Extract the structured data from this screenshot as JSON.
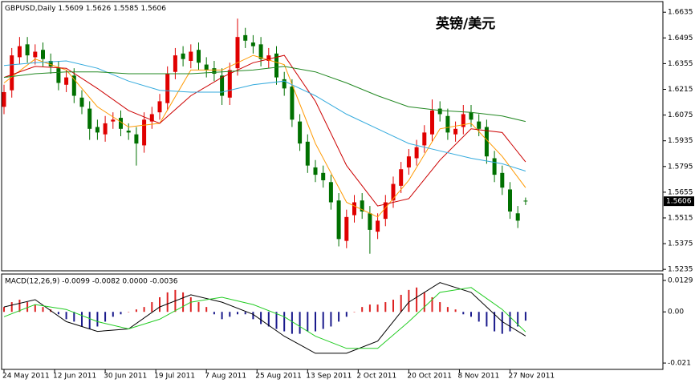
{
  "chart_data": [
    {
      "type": "candlestick",
      "title": "GBPUSD,Daily",
      "annotation": "英镑/美元",
      "open": [
        1.612,
        1.621,
        1.639,
        1.646,
        1.639,
        1.643,
        1.637,
        1.633,
        1.624,
        1.629,
        1.617,
        1.611,
        1.601,
        1.597,
        1.604,
        1.606,
        1.599,
        1.597,
        1.591,
        1.604,
        1.609,
        1.614,
        1.631,
        1.641,
        1.637,
        1.643,
        1.635,
        1.633,
        1.629,
        1.617,
        1.633,
        1.651,
        1.647,
        1.646,
        1.637,
        1.641,
        1.627,
        1.623,
        1.604,
        1.593,
        1.579,
        1.576,
        1.571,
        1.561,
        1.539,
        1.553,
        1.561,
        1.554,
        1.544,
        1.551,
        1.561,
        1.569,
        1.579,
        1.584,
        1.591,
        1.597,
        1.611,
        1.607,
        1.597,
        1.601,
        1.609,
        1.604,
        1.601,
        1.584,
        1.576,
        1.567,
        1.554,
        1.5609
      ],
      "high": [
        1.624,
        1.644,
        1.65,
        1.65,
        1.646,
        1.647,
        1.641,
        1.637,
        1.632,
        1.633,
        1.621,
        1.615,
        1.605,
        1.607,
        1.609,
        1.61,
        1.603,
        1.601,
        1.609,
        1.612,
        1.619,
        1.634,
        1.644,
        1.645,
        1.646,
        1.647,
        1.639,
        1.637,
        1.633,
        1.636,
        1.66,
        1.655,
        1.651,
        1.65,
        1.644,
        1.645,
        1.631,
        1.627,
        1.608,
        1.597,
        1.583,
        1.58,
        1.575,
        1.565,
        1.556,
        1.564,
        1.565,
        1.558,
        1.554,
        1.564,
        1.574,
        1.582,
        1.589,
        1.594,
        1.602,
        1.616,
        1.615,
        1.611,
        1.604,
        1.613,
        1.613,
        1.608,
        1.605,
        1.588,
        1.58,
        1.571,
        1.558,
        1.5626
      ],
      "low": [
        1.608,
        1.617,
        1.635,
        1.636,
        1.635,
        1.634,
        1.63,
        1.621,
        1.62,
        1.614,
        1.608,
        1.594,
        1.594,
        1.593,
        1.6,
        1.596,
        1.594,
        1.58,
        1.587,
        1.6,
        1.605,
        1.61,
        1.627,
        1.634,
        1.633,
        1.632,
        1.628,
        1.626,
        1.613,
        1.613,
        1.629,
        1.644,
        1.641,
        1.634,
        1.633,
        1.624,
        1.618,
        1.601,
        1.588,
        1.576,
        1.571,
        1.568,
        1.556,
        1.536,
        1.535,
        1.549,
        1.551,
        1.532,
        1.54,
        1.547,
        1.557,
        1.565,
        1.575,
        1.58,
        1.587,
        1.593,
        1.604,
        1.594,
        1.593,
        1.597,
        1.601,
        1.596,
        1.581,
        1.571,
        1.564,
        1.551,
        1.546,
        1.5585
      ],
      "close": [
        1.62,
        1.64,
        1.645,
        1.64,
        1.642,
        1.638,
        1.634,
        1.625,
        1.628,
        1.618,
        1.612,
        1.6,
        1.598,
        1.603,
        1.605,
        1.6,
        1.598,
        1.592,
        1.605,
        1.608,
        1.615,
        1.63,
        1.64,
        1.638,
        1.642,
        1.636,
        1.632,
        1.63,
        1.618,
        1.632,
        1.65,
        1.648,
        1.645,
        1.638,
        1.64,
        1.628,
        1.622,
        1.605,
        1.592,
        1.58,
        1.575,
        1.572,
        1.56,
        1.54,
        1.552,
        1.56,
        1.555,
        1.545,
        1.55,
        1.56,
        1.57,
        1.578,
        1.585,
        1.59,
        1.598,
        1.61,
        1.608,
        1.598,
        1.6,
        1.608,
        1.605,
        1.6,
        1.585,
        1.575,
        1.568,
        1.555,
        1.55,
        1.5606
      ],
      "up_color": "#e00000",
      "down_color": "#007000",
      "series": [
        {
          "color": "#ff9900",
          "x": [
            0,
            4,
            8,
            12,
            16,
            20,
            24,
            28,
            32,
            36,
            40,
            44,
            48,
            52,
            56,
            60,
            64,
            67
          ],
          "values": [
            1.625,
            1.638,
            1.632,
            1.612,
            1.601,
            1.603,
            1.632,
            1.632,
            1.64,
            1.635,
            1.592,
            1.56,
            1.552,
            1.572,
            1.6,
            1.603,
            1.585,
            1.568
          ]
        },
        {
          "color": "#cc0000",
          "x": [
            0,
            4,
            8,
            12,
            16,
            20,
            24,
            28,
            32,
            36,
            40,
            44,
            48,
            52,
            56,
            60,
            64,
            67
          ],
          "values": [
            1.628,
            1.634,
            1.633,
            1.622,
            1.61,
            1.603,
            1.618,
            1.628,
            1.636,
            1.64,
            1.615,
            1.58,
            1.558,
            1.562,
            1.583,
            1.6,
            1.598,
            1.582
          ]
        },
        {
          "color": "#33aadd",
          "x": [
            0,
            4,
            8,
            12,
            16,
            20,
            24,
            28,
            32,
            36,
            40,
            44,
            48,
            52,
            56,
            60,
            64,
            67
          ],
          "values": [
            1.6345,
            1.636,
            1.637,
            1.633,
            1.626,
            1.621,
            1.62,
            1.62,
            1.624,
            1.626,
            1.618,
            1.608,
            1.6,
            1.592,
            1.588,
            1.584,
            1.581,
            1.577
          ]
        },
        {
          "color": "#228822",
          "x": [
            0,
            4,
            8,
            12,
            16,
            20,
            24,
            28,
            32,
            36,
            40,
            44,
            48,
            52,
            56,
            60,
            64,
            67
          ],
          "values": [
            1.628,
            1.63,
            1.631,
            1.631,
            1.63,
            1.63,
            1.63,
            1.631,
            1.632,
            1.634,
            1.631,
            1.625,
            1.618,
            1.612,
            1.61,
            1.609,
            1.607,
            1.604
          ]
        }
      ],
      "ylim": [
        1.5227,
        1.6684
      ],
      "yticks": [
        1.6635,
        1.6495,
        1.6355,
        1.6215,
        1.6075,
        1.5935,
        1.5795,
        1.5655,
        1.5515,
        1.5375,
        1.5235
      ],
      "xticks": [
        {
          "value": 0,
          "label": "24 May 2011"
        },
        {
          "value": 6.5,
          "label": "12 Jun 2011"
        },
        {
          "value": 13,
          "label": "30 Jun 2011"
        },
        {
          "value": 19.5,
          "label": "19 Jul 2011"
        },
        {
          "value": 26,
          "label": "7 Aug 2011"
        },
        {
          "value": 32.5,
          "label": "25 Aug 2011"
        },
        {
          "value": 39,
          "label": "13 Sep 2011"
        },
        {
          "value": 45.5,
          "label": "2 Oct 2011"
        },
        {
          "value": 52,
          "label": "20 Oct 2011"
        },
        {
          "value": 58.5,
          "label": "8 Nov 2011"
        },
        {
          "value": 65,
          "label": "27 Nov 2011"
        }
      ]
    },
    {
      "type": "macd",
      "title": "MACD(12,26,9) -0.0099 -0.0082 0.0000 -0.0036",
      "histogram": [
        0.002,
        0.004,
        0.005,
        0.004,
        0.003,
        0.002,
        0.001,
        -0.001,
        -0.003,
        -0.004,
        -0.006,
        -0.007,
        -0.006,
        -0.004,
        -0.002,
        -0.001,
        0,
        0.001,
        0.002,
        0.004,
        0.006,
        0.008,
        0.009,
        0.008,
        0.006,
        0.004,
        0.002,
        -0.001,
        -0.003,
        -0.002,
        -0.001,
        -0.001,
        -0.003,
        -0.005,
        -0.006,
        -0.007,
        -0.008,
        -0.009,
        -0.009,
        -0.008,
        -0.008,
        -0.007,
        -0.006,
        -0.004,
        -0.002,
        0,
        0.002,
        0.003,
        0.003,
        0.004,
        0.005,
        0.007,
        0.009,
        0.01,
        0.008,
        0.006,
        0.004,
        0.002,
        0.001,
        -0.001,
        -0.002,
        -0.004,
        -0.006,
        -0.008,
        -0.009,
        -0.008,
        -0.006,
        -0.0036
      ],
      "positive_color": "#dd2222",
      "negative_color": "#1a1a8c",
      "series": [
        {
          "color": "#000000",
          "x": [
            0,
            4,
            8,
            12,
            16,
            20,
            24,
            28,
            32,
            36,
            40,
            44,
            48,
            52,
            56,
            60,
            64,
            67
          ],
          "values": [
            0.002,
            0.005,
            -0.004,
            -0.008,
            -0.007,
            0.002,
            0.007,
            0.004,
            -0.001,
            -0.01,
            -0.017,
            -0.017,
            -0.012,
            0.004,
            0.012,
            0.008,
            -0.004,
            -0.0099
          ]
        },
        {
          "color": "#22cc22",
          "x": [
            0,
            4,
            8,
            12,
            16,
            20,
            24,
            28,
            32,
            36,
            40,
            44,
            48,
            52,
            56,
            60,
            64,
            67
          ],
          "values": [
            -0.002,
            0.003,
            0.001,
            -0.004,
            -0.007,
            -0.003,
            0.004,
            0.006,
            0.003,
            -0.002,
            -0.01,
            -0.015,
            -0.015,
            -0.004,
            0.008,
            0.01,
            0.001,
            -0.0082
          ]
        }
      ],
      "ylim": [
        -0.0236,
        0.0152
      ],
      "yticks": [
        0.0129,
        {
          "value": 0,
          "label": "0.00"
        },
        -0.021
      ]
    }
  ]
}
